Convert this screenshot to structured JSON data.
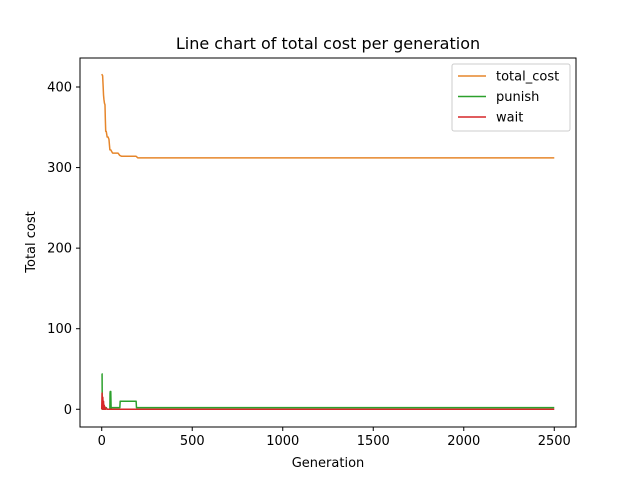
{
  "chart_data": {
    "type": "line",
    "title": "Line chart of total cost per generation",
    "xlabel": "Generation",
    "ylabel": "Total cost",
    "xlim": [
      -120,
      2620
    ],
    "ylim": [
      -22,
      436
    ],
    "xticks": [
      0,
      500,
      1000,
      1500,
      2000,
      2500
    ],
    "yticks": [
      0,
      100,
      200,
      300,
      400
    ],
    "grid": false,
    "legend_position": "top-right",
    "series": [
      {
        "name": "total_cost",
        "color": "#e6862b",
        "x": [
          0,
          5,
          8,
          10,
          12,
          15,
          18,
          20,
          22,
          25,
          30,
          35,
          40,
          45,
          50,
          55,
          60,
          70,
          80,
          90,
          100,
          110,
          150,
          190,
          200,
          2500
        ],
        "y": [
          416,
          414,
          400,
          390,
          385,
          380,
          378,
          360,
          345,
          345,
          338,
          338,
          335,
          322,
          322,
          320,
          318,
          318,
          318,
          318,
          315,
          314,
          314,
          314,
          312,
          312
        ]
      },
      {
        "name": "punish",
        "color": "#2ca02c",
        "x": [
          0,
          2,
          3,
          5,
          8,
          10,
          15,
          20,
          25,
          30,
          45,
          46,
          47,
          50,
          52,
          53,
          55,
          60,
          100,
          102,
          150,
          190,
          192,
          200,
          2500
        ],
        "y": [
          44,
          44,
          0,
          3,
          2,
          0,
          3,
          0,
          2,
          0,
          0,
          20,
          22,
          22,
          0,
          2,
          2,
          2,
          2,
          10,
          10,
          10,
          2,
          2,
          2
        ]
      },
      {
        "name": "wait",
        "color": "#d62728",
        "x": [
          0,
          2,
          4,
          6,
          8,
          10,
          12,
          14,
          16,
          18,
          20,
          25,
          30,
          40,
          60,
          80,
          200,
          2500
        ],
        "y": [
          0,
          20,
          0,
          15,
          2,
          10,
          0,
          5,
          0,
          3,
          0,
          1,
          0,
          0,
          0,
          0,
          0,
          0
        ]
      }
    ]
  }
}
